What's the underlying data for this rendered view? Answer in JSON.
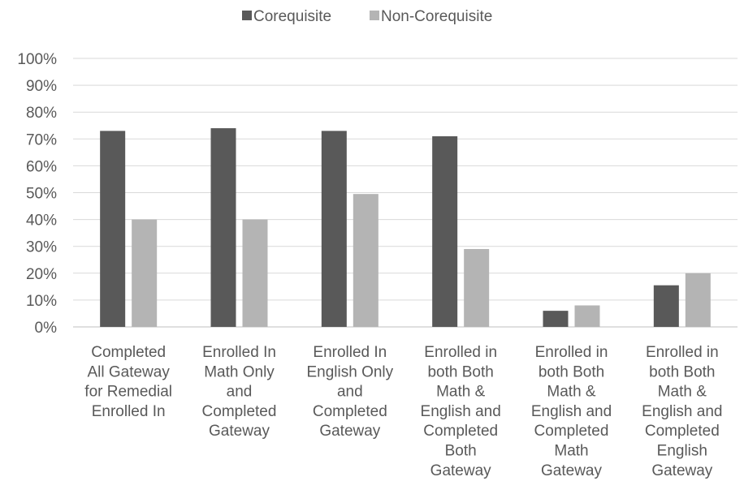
{
  "chart_data": {
    "type": "bar",
    "categories": [
      [
        "Completed",
        "All Gateway",
        "for Remedial",
        "Enrolled In"
      ],
      [
        "Enrolled In",
        "Math Only",
        "and",
        "Completed",
        "Gateway"
      ],
      [
        "Enrolled In",
        "English Only",
        "and",
        "Completed",
        "Gateway"
      ],
      [
        "Enrolled in",
        "both Both",
        "Math &",
        "English and",
        "Completed",
        "Both",
        "Gateway"
      ],
      [
        "Enrolled in",
        "both Both",
        "Math &",
        "English and",
        "Completed",
        "Math",
        "Gateway"
      ],
      [
        "Enrolled in",
        "both Both",
        "Math &",
        "English and",
        "Completed",
        "English",
        "Gateway"
      ]
    ],
    "series": [
      {
        "name": "Corequisite",
        "color": "#595959",
        "values": [
          0.73,
          0.74,
          0.73,
          0.71,
          0.06,
          0.155
        ]
      },
      {
        "name": "Non-Corequisite",
        "color": "#b4b4b4",
        "values": [
          0.4,
          0.4,
          0.495,
          0.29,
          0.08,
          0.2
        ]
      }
    ],
    "ylim": [
      0,
      1
    ],
    "yticks": [
      "0%",
      "10%",
      "20%",
      "30%",
      "40%",
      "50%",
      "60%",
      "70%",
      "80%",
      "90%",
      "100%"
    ],
    "grid": true,
    "legend_position": "top-center",
    "title": "",
    "xlabel": "",
    "ylabel": ""
  }
}
